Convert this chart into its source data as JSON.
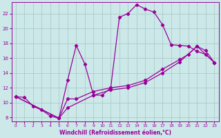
{
  "xlabel": "Windchill (Refroidissement éolien,°C)",
  "background_color": "#cce8e8",
  "grid_color": "#aacccc",
  "line_color": "#990099",
  "xlim": [
    -0.5,
    23.5
  ],
  "ylim": [
    7.5,
    23.5
  ],
  "xticks": [
    0,
    1,
    2,
    3,
    4,
    5,
    6,
    7,
    8,
    9,
    10,
    11,
    12,
    13,
    14,
    15,
    16,
    17,
    18,
    19,
    20,
    21,
    22,
    23
  ],
  "yticks": [
    8,
    10,
    12,
    14,
    16,
    18,
    20,
    22
  ],
  "curve1_x": [
    0,
    1,
    2,
    3,
    4,
    5,
    6,
    7,
    8,
    9,
    10,
    11,
    12,
    13,
    14,
    15,
    16,
    17,
    18,
    19,
    20,
    21,
    22,
    23
  ],
  "curve1_y": [
    10.8,
    10.7,
    9.5,
    9.0,
    8.2,
    7.9,
    13.0,
    17.7,
    15.2,
    11.0,
    11.0,
    12.0,
    21.5,
    22.0,
    23.2,
    22.6,
    22.2,
    20.5,
    17.8,
    17.7,
    17.6,
    16.9,
    16.5,
    15.4
  ],
  "curve2_x": [
    0,
    5,
    6,
    7,
    9,
    11,
    13,
    15,
    17,
    19,
    20,
    21,
    22,
    23
  ],
  "curve2_y": [
    10.8,
    7.9,
    10.5,
    10.5,
    11.5,
    12.0,
    12.3,
    13.0,
    14.5,
    15.8,
    16.5,
    17.6,
    17.0,
    15.4
  ],
  "curve3_x": [
    0,
    5,
    6,
    9,
    11,
    13,
    15,
    17,
    19,
    21,
    23
  ],
  "curve3_y": [
    10.8,
    7.9,
    9.3,
    11.0,
    11.7,
    12.0,
    12.7,
    14.0,
    15.5,
    17.6,
    15.4
  ]
}
